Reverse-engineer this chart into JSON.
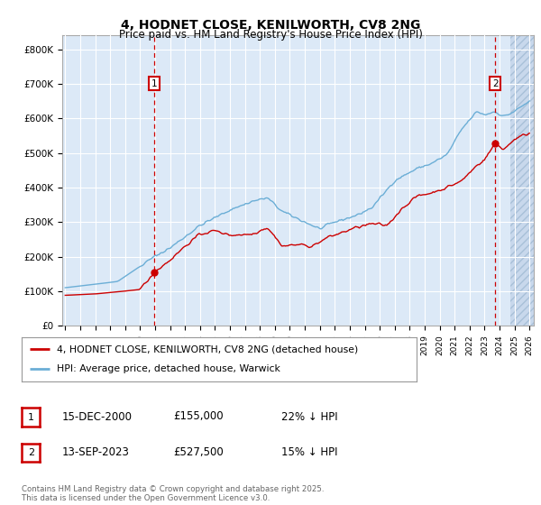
{
  "title": "4, HODNET CLOSE, KENILWORTH, CV8 2NG",
  "subtitle": "Price paid vs. HM Land Registry's House Price Index (HPI)",
  "ylim": [
    0,
    840000
  ],
  "yticks": [
    0,
    100000,
    200000,
    300000,
    400000,
    500000,
    600000,
    700000,
    800000
  ],
  "ytick_labels": [
    "£0",
    "£100K",
    "£200K",
    "£300K",
    "£400K",
    "£500K",
    "£600K",
    "£700K",
    "£800K"
  ],
  "xlim_start": 1994.8,
  "xlim_end": 2026.3,
  "plot_bg_color": "#dce9f7",
  "grid_color": "#ffffff",
  "hpi_color": "#6baed6",
  "price_color": "#cc0000",
  "marker1_date": 2000.958,
  "marker1_price": 155000,
  "marker2_date": 2023.708,
  "marker2_price": 527500,
  "legend_line1": "4, HODNET CLOSE, KENILWORTH, CV8 2NG (detached house)",
  "legend_line2": "HPI: Average price, detached house, Warwick",
  "annotation1_date": "15-DEC-2000",
  "annotation1_price": "£155,000",
  "annotation1_hpi": "22% ↓ HPI",
  "annotation2_date": "13-SEP-2023",
  "annotation2_price": "£527,500",
  "annotation2_hpi": "15% ↓ HPI",
  "footer": "Contains HM Land Registry data © Crown copyright and database right 2025.\nThis data is licensed under the Open Government Licence v3.0.",
  "hatch_start": 2024.75
}
